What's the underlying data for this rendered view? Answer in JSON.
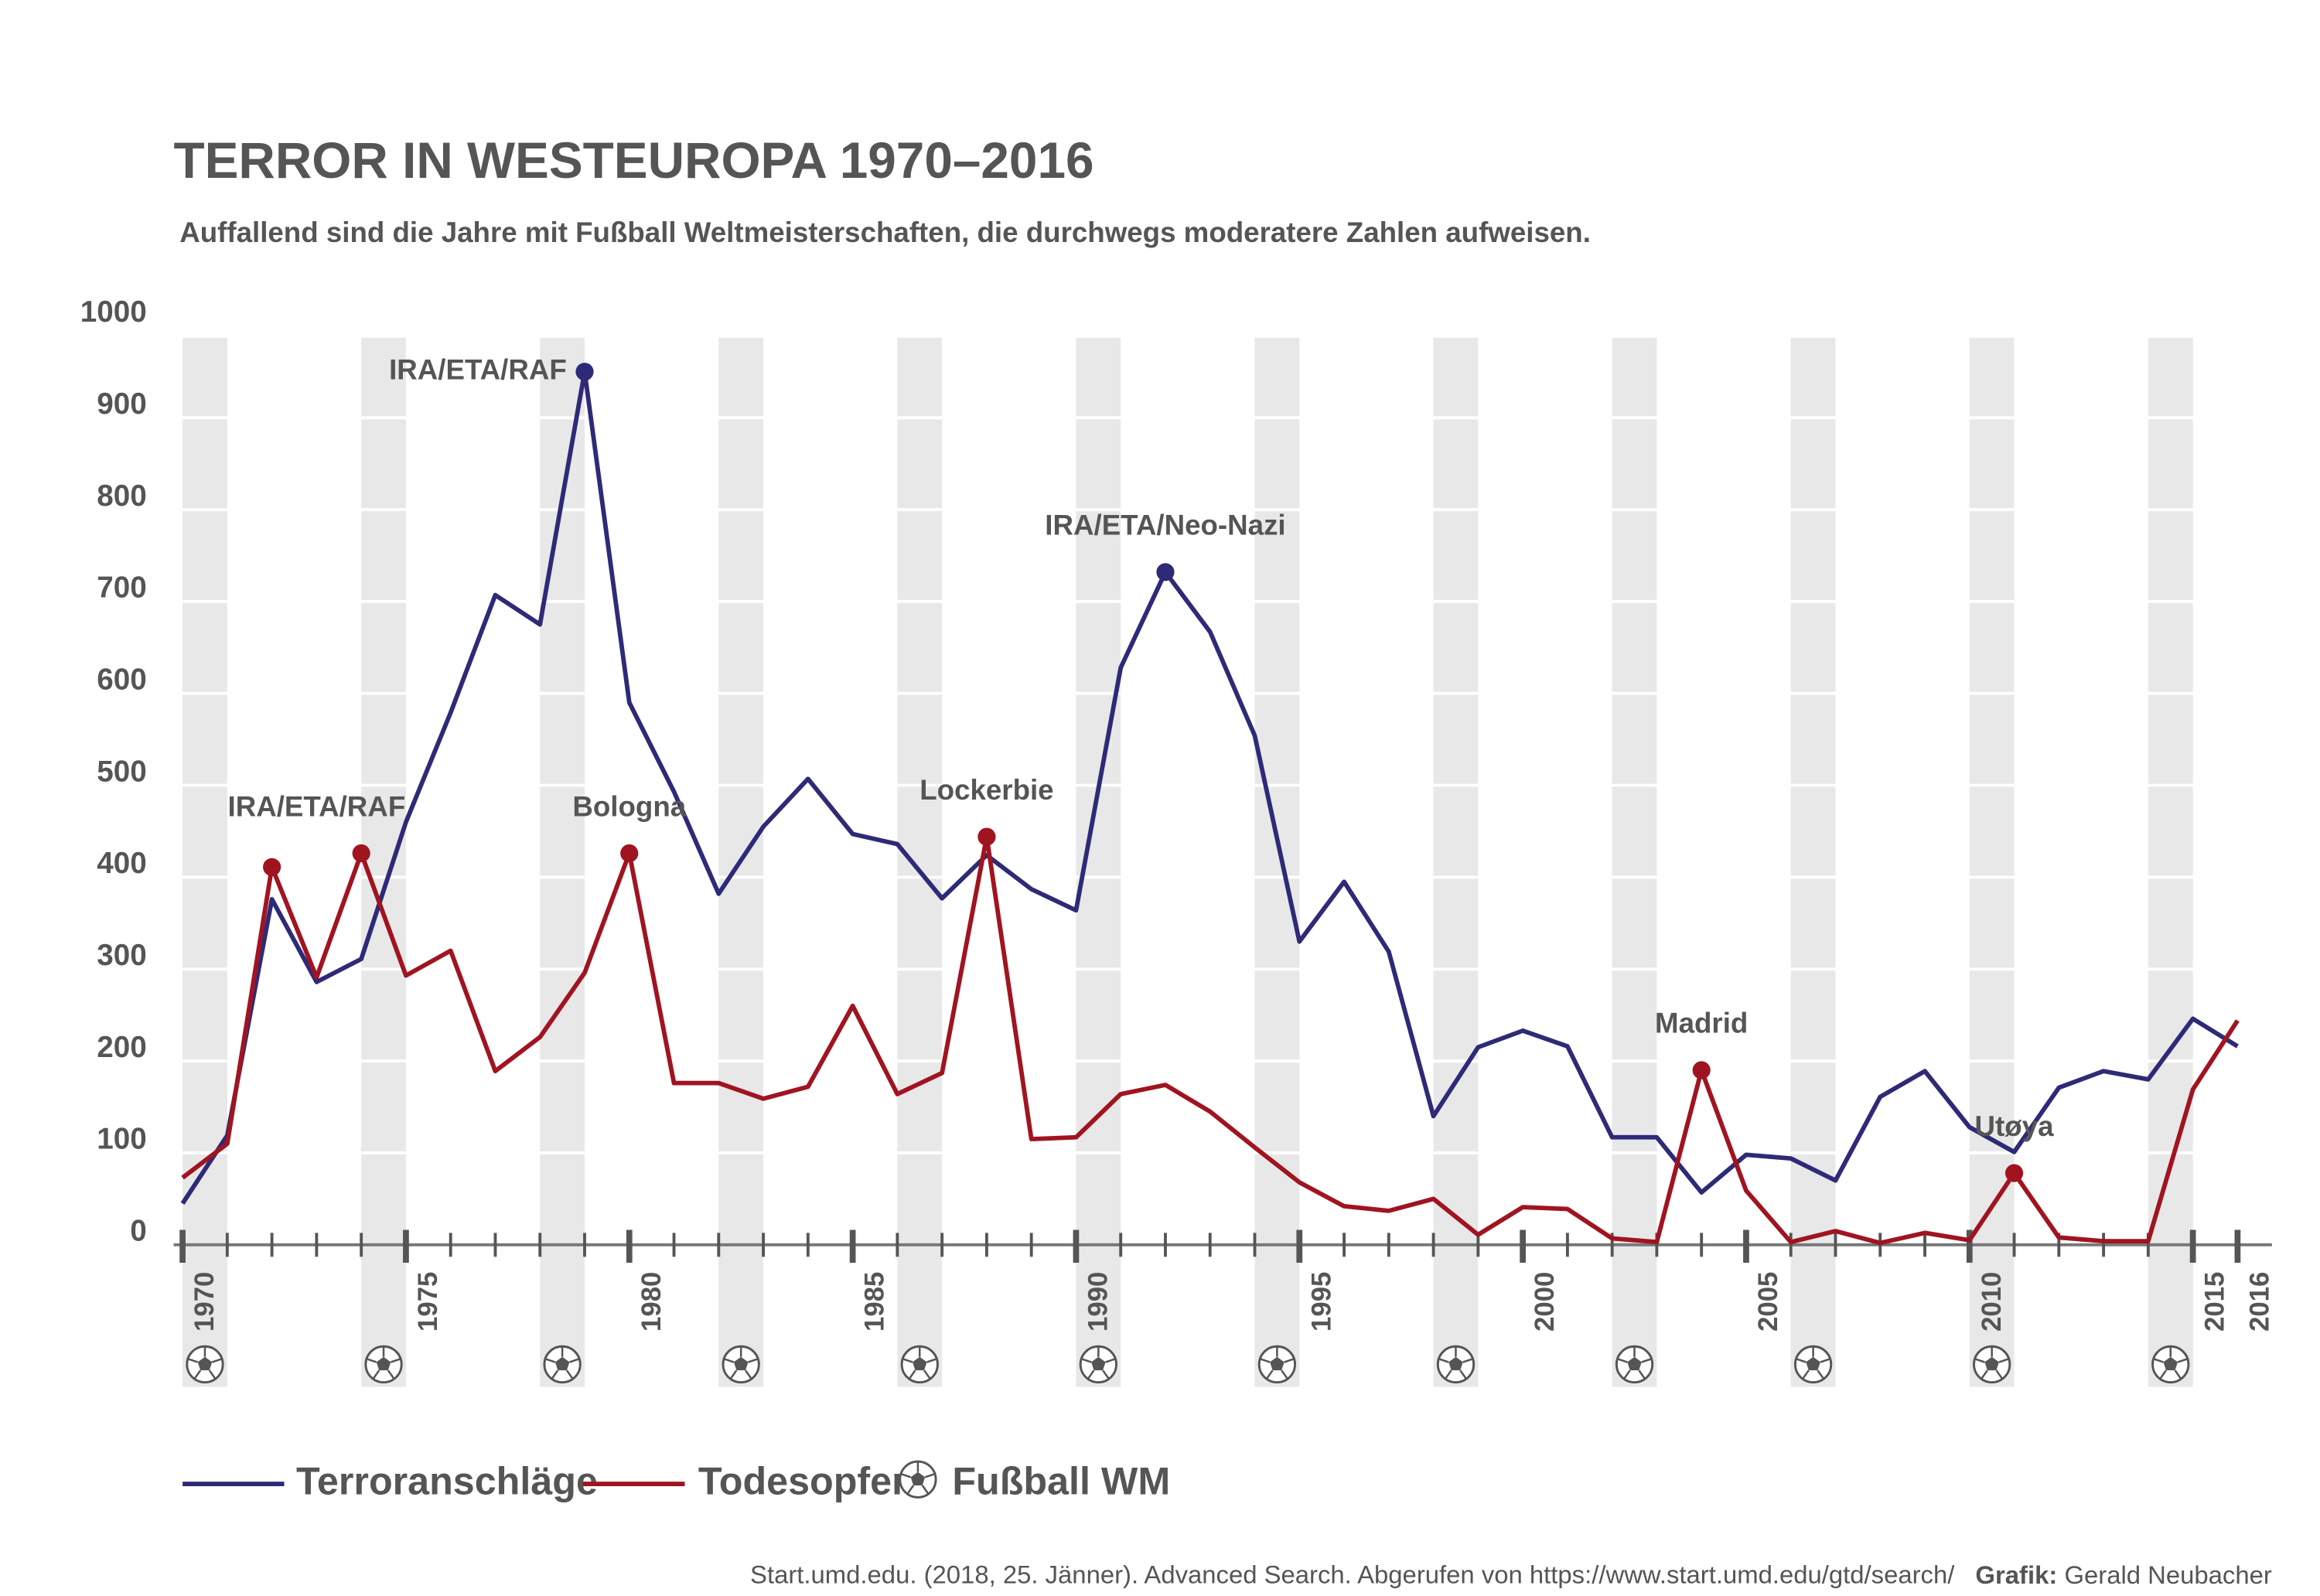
{
  "chart_data": {
    "type": "line",
    "title": "TERROR IN WESTEUROPA 1970–2016",
    "subtitle": "Auffallend sind die Jahre mit Fußball Weltmeisterschaften, die durchwegs moderatere Zahlen aufweisen.",
    "x": [
      1970,
      1971,
      1972,
      1973,
      1974,
      1975,
      1976,
      1977,
      1978,
      1979,
      1980,
      1981,
      1982,
      1983,
      1984,
      1985,
      1986,
      1987,
      1988,
      1989,
      1990,
      1991,
      1992,
      1993,
      1994,
      1995,
      1996,
      1997,
      1998,
      1999,
      2000,
      2001,
      2002,
      2003,
      2004,
      2005,
      2006,
      2007,
      2008,
      2009,
      2010,
      2011,
      2012,
      2013,
      2014,
      2015,
      2016
    ],
    "series": [
      {
        "name": "Terroranschläge",
        "color": "#2e2a78",
        "values": [
          45,
          119,
          376,
          286,
          311,
          460,
          579,
          707,
          675,
          950,
          590,
          493,
          382,
          455,
          507,
          447,
          436,
          377,
          424,
          387,
          364,
          628,
          732,
          667,
          554,
          330,
          395,
          319,
          140,
          215,
          233,
          216,
          117,
          117,
          57,
          98,
          94,
          70,
          161,
          189,
          128,
          101,
          171,
          189,
          180,
          246,
          216
        ]
      },
      {
        "name": "Todesopfer",
        "color": "#a01420",
        "values": [
          73,
          110,
          411,
          291,
          426,
          293,
          320,
          189,
          226,
          296,
          426,
          176,
          176,
          159,
          172,
          260,
          164,
          187,
          444,
          115,
          117,
          164,
          174,
          145,
          106,
          68,
          42,
          37,
          50,
          11,
          41,
          39,
          7,
          3,
          190,
          59,
          3,
          15,
          2,
          13,
          5,
          78,
          8,
          4,
          4,
          169,
          244
        ]
      }
    ],
    "world_cup_label": "Fußball WM",
    "world_cup_years": [
      1970,
      1974,
      1978,
      1982,
      1986,
      1990,
      1994,
      1998,
      2002,
      2006,
      2010,
      2014
    ],
    "annotations": [
      {
        "text": "IRA/ETA/RAF",
        "series": 0,
        "indices": [
          9
        ]
      },
      {
        "text": "IRA/ETA/Neo-Nazi",
        "series": 0,
        "indices": [
          22
        ]
      },
      {
        "text": "IRA/ETA/RAF",
        "series": 1,
        "indices": [
          2,
          4
        ]
      },
      {
        "text": "Bologna",
        "series": 1,
        "indices": [
          10
        ]
      },
      {
        "text": "Lockerbie",
        "series": 1,
        "indices": [
          18
        ]
      },
      {
        "text": "Madrid",
        "series": 1,
        "indices": [
          34
        ]
      },
      {
        "text": "Utøya",
        "series": 1,
        "indices": [
          41
        ]
      }
    ],
    "xlim": [
      1970,
      2016
    ],
    "xticks": [
      1970,
      1975,
      1980,
      1985,
      1990,
      1995,
      2000,
      2005,
      2010,
      2015,
      2016
    ],
    "ylim": [
      0,
      1000
    ],
    "yticks": [
      0,
      100,
      200,
      300,
      400,
      500,
      600,
      700,
      800,
      900,
      1000
    ],
    "grid": true,
    "source": "Start.umd.edu. (2018, 25. Jänner). Advanced Search. Abgerufen von  https://www.start.umd.edu/gtd/search/",
    "credit_label": "Grafik:",
    "credit_name": "Gerald Neubacher"
  }
}
